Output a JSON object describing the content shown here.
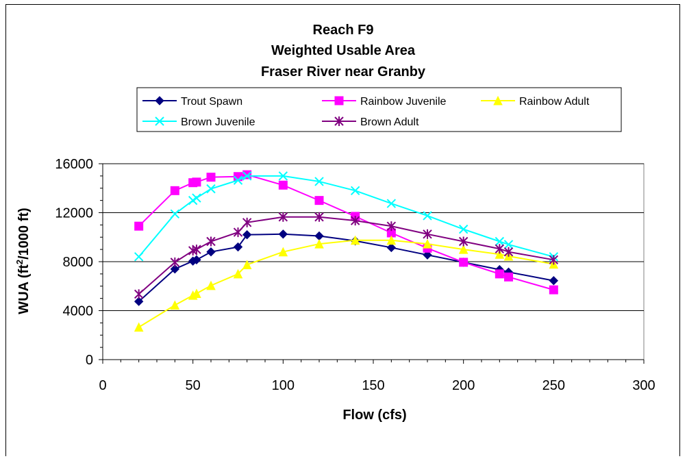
{
  "chart_data": {
    "type": "line",
    "title_lines": [
      "Reach F9",
      "Weighted Usable Area",
      "Fraser River near Granby"
    ],
    "xlabel": "Flow (cfs)",
    "ylabel": {
      "prefix": "WUA (ft",
      "sup": "2",
      "suffix": "/1000 ft)"
    },
    "xlim": [
      0,
      300
    ],
    "ylim": [
      0,
      16000
    ],
    "x_ticks": [
      0,
      50,
      100,
      150,
      200,
      250,
      300
    ],
    "y_ticks": [
      0,
      4000,
      8000,
      12000,
      16000
    ],
    "grid": "horizontal",
    "legend_position": "top",
    "series": [
      {
        "name": "Trout Spawn",
        "color": "#000080",
        "marker": "diamond",
        "points": [
          [
            20,
            4750
          ],
          [
            40,
            7400
          ],
          [
            50,
            8050
          ],
          [
            52,
            8150
          ],
          [
            60,
            8800
          ],
          [
            75,
            9200
          ],
          [
            80,
            10200
          ],
          [
            100,
            10250
          ],
          [
            120,
            10100
          ],
          [
            140,
            9700
          ],
          [
            160,
            9150
          ],
          [
            180,
            8550
          ],
          [
            200,
            7950
          ],
          [
            220,
            7350
          ],
          [
            225,
            7150
          ],
          [
            250,
            6450
          ]
        ]
      },
      {
        "name": "Rainbow Juvenile",
        "color": "#FF00FF",
        "marker": "square",
        "points": [
          [
            20,
            10900
          ],
          [
            40,
            13800
          ],
          [
            50,
            14450
          ],
          [
            52,
            14500
          ],
          [
            60,
            14900
          ],
          [
            75,
            14950
          ],
          [
            80,
            15100
          ],
          [
            100,
            14250
          ],
          [
            120,
            13000
          ],
          [
            140,
            11700
          ],
          [
            160,
            10350
          ],
          [
            180,
            9100
          ],
          [
            200,
            7950
          ],
          [
            220,
            7000
          ],
          [
            225,
            6750
          ],
          [
            250,
            5700
          ]
        ]
      },
      {
        "name": "Rainbow Adult",
        "color": "#FFFF00",
        "marker": "triangle",
        "points": [
          [
            20,
            2650
          ],
          [
            40,
            4450
          ],
          [
            50,
            5250
          ],
          [
            52,
            5400
          ],
          [
            60,
            6050
          ],
          [
            75,
            7000
          ],
          [
            80,
            7750
          ],
          [
            100,
            8800
          ],
          [
            120,
            9450
          ],
          [
            140,
            9750
          ],
          [
            160,
            9750
          ],
          [
            180,
            9450
          ],
          [
            200,
            9000
          ],
          [
            220,
            8600
          ],
          [
            225,
            8450
          ],
          [
            250,
            7800
          ]
        ]
      },
      {
        "name": "Brown  Juvenile",
        "color": "#00FFFF",
        "marker": "x",
        "points": [
          [
            20,
            8400
          ],
          [
            40,
            11900
          ],
          [
            50,
            13000
          ],
          [
            52,
            13200
          ],
          [
            60,
            13950
          ],
          [
            75,
            14650
          ],
          [
            80,
            15000
          ],
          [
            100,
            15000
          ],
          [
            120,
            14550
          ],
          [
            140,
            13800
          ],
          [
            160,
            12750
          ],
          [
            180,
            11750
          ],
          [
            200,
            10650
          ],
          [
            220,
            9650
          ],
          [
            225,
            9400
          ],
          [
            250,
            8400
          ]
        ]
      },
      {
        "name": "Brown Adult",
        "color": "#800080",
        "marker": "asterisk",
        "points": [
          [
            20,
            5350
          ],
          [
            40,
            7950
          ],
          [
            50,
            8900
          ],
          [
            52,
            9000
          ],
          [
            60,
            9650
          ],
          [
            75,
            10400
          ],
          [
            80,
            11200
          ],
          [
            100,
            11650
          ],
          [
            120,
            11650
          ],
          [
            140,
            11350
          ],
          [
            160,
            10900
          ],
          [
            180,
            10250
          ],
          [
            200,
            9650
          ],
          [
            220,
            9050
          ],
          [
            225,
            8800
          ],
          [
            250,
            8150
          ]
        ]
      }
    ]
  }
}
